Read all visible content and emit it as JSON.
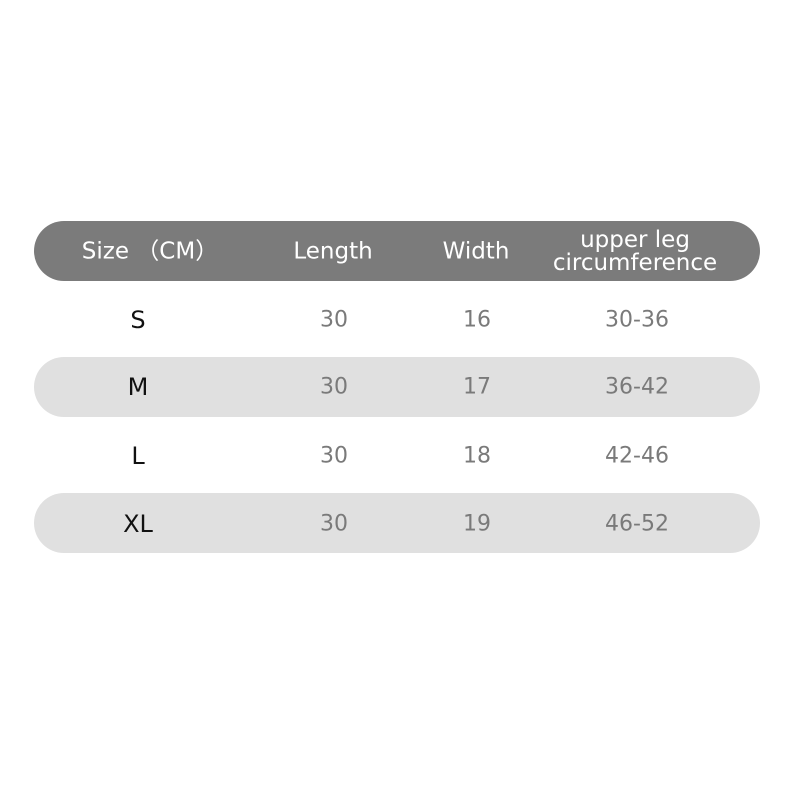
{
  "table": {
    "headers": [
      "Size （CM）",
      "Length",
      "Width",
      "upper leg\ncircumference"
    ],
    "header_line1": "upper leg",
    "header_line2": "circumference",
    "rows": [
      {
        "size": "S",
        "length": "30",
        "width": "16",
        "circumference": "30-36"
      },
      {
        "size": "M",
        "length": "30",
        "width": "17",
        "circumference": "36-42"
      },
      {
        "size": "L",
        "length": "30",
        "width": "18",
        "circumference": "42-46"
      },
      {
        "size": "XL",
        "length": "30",
        "width": "19",
        "circumference": "46-52"
      }
    ]
  },
  "colors": {
    "header_bg": "#7b7b7b",
    "stripe_bg": "#e0e0e0",
    "value_text": "#7a7a7a"
  }
}
